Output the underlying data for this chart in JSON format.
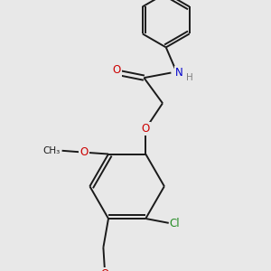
{
  "bg_color": "#e8e8e8",
  "bond_color": "#1a1a1a",
  "lw": 1.4,
  "atom_colors": {
    "O": "#cc0000",
    "N": "#0000cc",
    "Cl": "#228b22",
    "H_gray": "#808080"
  },
  "font_size_atom": 8.5,
  "font_size_H": 7.5
}
